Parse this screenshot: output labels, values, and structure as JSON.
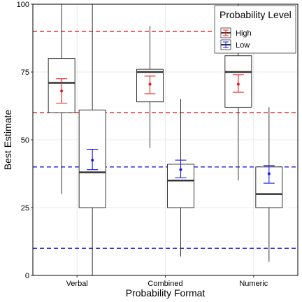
{
  "chart_data": {
    "type": "boxplot",
    "xlabel": "Probability Format",
    "ylabel": "Best Estimate",
    "categories": [
      "Verbal",
      "Combined",
      "Numeric"
    ],
    "ylim": [
      0,
      100
    ],
    "yticks": [
      0,
      25,
      50,
      75,
      100
    ],
    "grid": true,
    "legend": {
      "title": "Probability Level",
      "placement": "top-right",
      "entries": [
        {
          "label": "High",
          "color": "#e41a1c"
        },
        {
          "label": "Low",
          "color": "#1a1ae4"
        }
      ]
    },
    "series": [
      {
        "name": "High",
        "color": "#e41a1c",
        "boxes": [
          {
            "category": "Verbal",
            "whisker_low": 30,
            "q1": 60,
            "median": 71,
            "q3": 80,
            "whisker_high": 100
          },
          {
            "category": "Combined",
            "whisker_low": 47,
            "q1": 64,
            "median": 75,
            "q3": 76,
            "whisker_high": 92
          },
          {
            "category": "Numeric",
            "whisker_low": 35,
            "q1": 62,
            "median": 75,
            "q3": 81,
            "whisker_high": 100
          }
        ],
        "means": [
          {
            "category": "Verbal",
            "mean": 68,
            "ci_low": 63.5,
            "ci_high": 72.5
          },
          {
            "category": "Combined",
            "mean": 70.5,
            "ci_low": 67,
            "ci_high": 73.5
          },
          {
            "category": "Numeric",
            "mean": 70.5,
            "ci_low": 67.5,
            "ci_high": 74
          }
        ],
        "reference_lines": [
          60,
          90
        ]
      },
      {
        "name": "Low",
        "color": "#1a1ae4",
        "boxes": [
          {
            "category": "Verbal",
            "whisker_low": 0,
            "q1": 25,
            "median": 38,
            "q3": 61,
            "whisker_high": 100
          },
          {
            "category": "Combined",
            "whisker_low": 7,
            "q1": 25,
            "median": 35,
            "q3": 41,
            "whisker_high": 65
          },
          {
            "category": "Numeric",
            "whisker_low": 5,
            "q1": 25,
            "median": 30,
            "q3": 40,
            "whisker_high": 62
          }
        ],
        "means": [
          {
            "category": "Verbal",
            "mean": 42.5,
            "ci_low": 39,
            "ci_high": 46.5
          },
          {
            "category": "Combined",
            "mean": 39,
            "ci_low": 36,
            "ci_high": 42.5
          },
          {
            "category": "Numeric",
            "mean": 37.5,
            "ci_low": 34,
            "ci_high": 40.5
          }
        ],
        "reference_lines": [
          10,
          40
        ]
      }
    ]
  }
}
